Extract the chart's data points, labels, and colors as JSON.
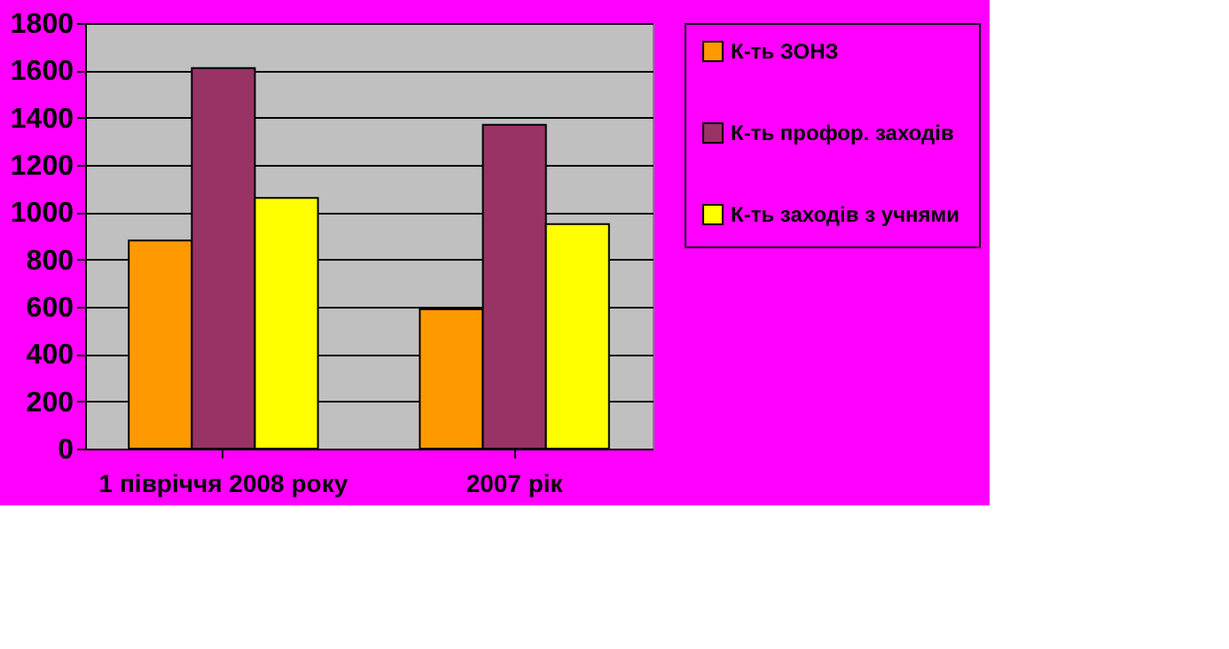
{
  "chart_data": {
    "type": "bar",
    "categories": [
      "1 півріччя 2008 року",
      "2007 рік"
    ],
    "series": [
      {
        "name": "К-ть ЗОНЗ",
        "color": "#ff9900",
        "values": [
          880,
          590
        ]
      },
      {
        "name": "К-ть профор. заходів",
        "color": "#993366",
        "values": [
          1610,
          1370
        ]
      },
      {
        "name": "К-ть заходів з учнями",
        "color": "#ffff00",
        "values": [
          1060,
          950
        ]
      }
    ],
    "ylim": [
      0,
      1800
    ],
    "yticks": [
      0,
      200,
      400,
      600,
      800,
      1000,
      1200,
      1400,
      1600,
      1800
    ],
    "grid": "y",
    "legend": "right"
  }
}
